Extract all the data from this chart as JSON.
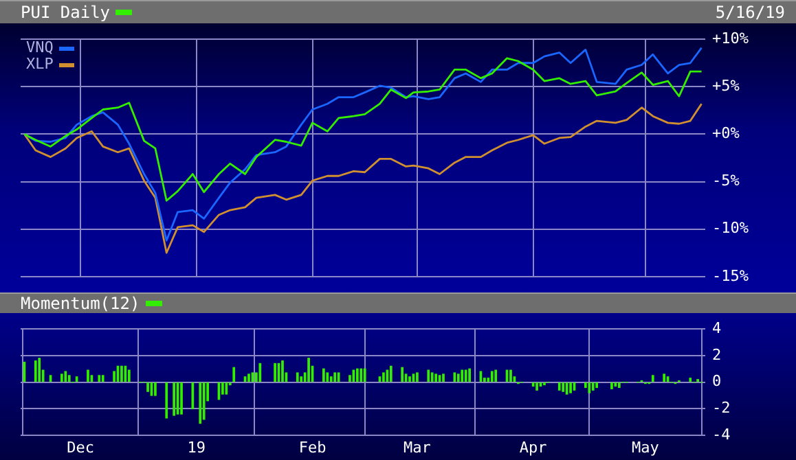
{
  "chart_data": [
    {
      "type": "line",
      "title": "PUI Daily",
      "annotations": [
        "5/16/19"
      ],
      "legend": "top left",
      "grid": true,
      "marker": "none",
      "tick_labels": "y",
      "x": [
        "2018-11-16",
        "2018-11-19",
        "2018-11-23",
        "2018-11-27",
        "2018-11-30",
        "2018-12-04",
        "2018-12-07",
        "2018-12-11",
        "2018-12-14",
        "2018-12-18",
        "2018-12-21",
        "2018-12-24",
        "2018-12-27",
        "2018-12-31",
        "2019-01-03",
        "2019-01-07",
        "2019-01-10",
        "2019-01-14",
        "2019-01-17",
        "2019-01-22",
        "2019-01-25",
        "2019-01-29",
        "2019-02-01",
        "2019-02-05",
        "2019-02-08",
        "2019-02-12",
        "2019-02-15",
        "2019-02-19",
        "2019-02-22",
        "2019-02-26",
        "2019-02-28",
        "2019-03-04",
        "2019-03-07",
        "2019-03-11",
        "2019-03-14",
        "2019-03-18",
        "2019-03-21",
        "2019-03-25",
        "2019-03-28",
        "2019-04-01",
        "2019-04-04",
        "2019-04-08",
        "2019-04-11",
        "2019-04-15",
        "2019-04-18",
        "2019-04-23",
        "2019-04-26",
        "2019-04-30",
        "2019-05-03",
        "2019-05-07",
        "2019-05-10",
        "2019-05-13",
        "2019-05-16"
      ],
      "series": [
        {
          "color": "#33ee00",
          "values": [
            0,
            -0.6,
            -1.3,
            -0.2,
            0.5,
            1.7,
            2.6,
            2.8,
            3.3,
            -0.7,
            -1.5,
            -7.0,
            -6.0,
            -4.2,
            -6.1,
            -4.2,
            -3.1,
            -4.2,
            -2.4,
            -0.6,
            -0.8,
            -1.2,
            1.2,
            0.3,
            1.7,
            1.9,
            2.1,
            3.2,
            4.7,
            3.8,
            4.4,
            4.5,
            4.7,
            6.8,
            6.8,
            5.9,
            6.4,
            8.0,
            7.7,
            6.8,
            5.6,
            5.9,
            5.3,
            5.6,
            4.1,
            4.5,
            5.4,
            6.5,
            5.2,
            5.6,
            4.0,
            6.6,
            6.6
          ]
        },
        {
          "name": "VNQ",
          "color": "#1a66ff",
          "values": [
            0,
            -0.7,
            -0.8,
            -0.4,
            1.0,
            1.9,
            2.3,
            1.0,
            -1.0,
            -4.2,
            -6.2,
            -11.2,
            -8.2,
            -8.0,
            -8.9,
            -6.7,
            -5.1,
            -3.7,
            -2.2,
            -1.9,
            -1.3,
            1.0,
            2.6,
            3.2,
            3.9,
            3.9,
            4.4,
            5.1,
            4.9,
            3.9,
            4.0,
            3.7,
            3.9,
            5.9,
            6.4,
            5.5,
            6.8,
            6.8,
            7.5,
            7.5,
            8.2,
            8.6,
            7.5,
            8.9,
            5.5,
            5.3,
            6.8,
            7.3,
            8.4,
            6.4,
            7.3,
            7.5,
            9.1
          ]
        },
        {
          "name": "XLP",
          "color": "#d09030",
          "values": [
            0,
            -1.7,
            -2.4,
            -1.5,
            -0.4,
            0.3,
            -1.3,
            -1.9,
            -1.5,
            -4.9,
            -6.7,
            -12.5,
            -9.8,
            -9.6,
            -10.3,
            -8.5,
            -8.0,
            -7.7,
            -6.7,
            -6.4,
            -6.9,
            -6.4,
            -4.9,
            -4.4,
            -4.4,
            -3.9,
            -4.0,
            -2.6,
            -2.6,
            -3.4,
            -3.3,
            -3.6,
            -4.2,
            -3.0,
            -2.4,
            -2.4,
            -1.7,
            -0.9,
            -0.6,
            -0.1,
            -1.0,
            -0.4,
            -0.3,
            0.8,
            1.4,
            1.2,
            1.5,
            2.8,
            1.9,
            1.2,
            1.1,
            1.4,
            3.2
          ]
        }
      ],
      "xlim": [
        "2018-11-15",
        "2019-05-17"
      ],
      "xticks": [
        {
          "value": "2018-12-01",
          "label": null
        },
        {
          "value": "2019-01-01",
          "label": null
        },
        {
          "value": "2019-02-01",
          "label": null
        },
        {
          "value": "2019-03-01",
          "label": null
        },
        {
          "value": "2019-04-01",
          "label": null
        },
        {
          "value": "2019-05-01",
          "label": null
        }
      ],
      "ylim": [
        -15,
        10
      ],
      "yticks": [
        {
          "value": 10,
          "label": "+10%"
        },
        {
          "value": 5,
          "label": "+5%"
        },
        {
          "value": 0,
          "label": "+0%"
        },
        {
          "value": -5,
          "label": "-5%"
        },
        {
          "value": -10,
          "label": "-10%"
        },
        {
          "value": -15,
          "label": "-15%"
        }
      ]
    },
    {
      "type": "bar",
      "title": "Momentum(12)",
      "grid": true,
      "color": "#33ee00",
      "x": [
        "2018-11-16",
        "2018-11-19",
        "2018-11-20",
        "2018-11-21",
        "2018-11-23",
        "2018-11-26",
        "2018-11-27",
        "2018-11-28",
        "2018-11-29",
        "2018-11-30",
        "2018-12-03",
        "2018-12-04",
        "2018-12-06",
        "2018-12-07",
        "2018-12-10",
        "2018-12-11",
        "2018-12-12",
        "2018-12-13",
        "2018-12-14",
        "2018-12-17",
        "2018-12-18",
        "2018-12-19",
        "2018-12-20",
        "2018-12-21",
        "2018-12-24",
        "2018-12-26",
        "2018-12-27",
        "2018-12-28",
        "2018-12-31",
        "2019-01-02",
        "2019-01-03",
        "2019-01-04",
        "2019-01-07",
        "2019-01-08",
        "2019-01-09",
        "2019-01-10",
        "2019-01-11",
        "2019-01-14",
        "2019-01-15",
        "2019-01-16",
        "2019-01-17",
        "2019-01-18",
        "2019-01-22",
        "2019-01-23",
        "2019-01-24",
        "2019-01-25",
        "2019-01-28",
        "2019-01-29",
        "2019-01-30",
        "2019-01-31",
        "2019-02-01",
        "2019-02-04",
        "2019-02-05",
        "2019-02-06",
        "2019-02-07",
        "2019-02-08",
        "2019-02-11",
        "2019-02-12",
        "2019-02-13",
        "2019-02-14",
        "2019-02-15",
        "2019-02-19",
        "2019-02-20",
        "2019-02-21",
        "2019-02-22",
        "2019-02-25",
        "2019-02-26",
        "2019-02-27",
        "2019-02-28",
        "2019-03-01",
        "2019-03-04",
        "2019-03-05",
        "2019-03-06",
        "2019-03-07",
        "2019-03-08",
        "2019-03-11",
        "2019-03-12",
        "2019-03-13",
        "2019-03-14",
        "2019-03-15",
        "2019-03-18",
        "2019-03-19",
        "2019-03-20",
        "2019-03-21",
        "2019-03-22",
        "2019-03-25",
        "2019-03-26",
        "2019-03-27",
        "2019-03-28",
        "2019-03-29",
        "2019-04-01",
        "2019-04-02",
        "2019-04-03",
        "2019-04-04",
        "2019-04-05",
        "2019-04-08",
        "2019-04-09",
        "2019-04-10",
        "2019-04-11",
        "2019-04-12",
        "2019-04-15",
        "2019-04-16",
        "2019-04-17",
        "2019-04-18",
        "2019-04-22",
        "2019-04-23",
        "2019-04-24",
        "2019-04-25",
        "2019-04-26",
        "2019-04-29",
        "2019-04-30",
        "2019-05-01",
        "2019-05-02",
        "2019-05-03",
        "2019-05-06",
        "2019-05-07",
        "2019-05-08",
        "2019-05-09",
        "2019-05-10",
        "2019-05-13",
        "2019-05-14",
        "2019-05-15",
        "2019-05-16"
      ],
      "values": [
        1.5,
        1.6,
        1.8,
        0.9,
        0.5,
        0.6,
        0.8,
        0.5,
        0,
        0.4,
        0.9,
        0.5,
        0.5,
        0.5,
        0.8,
        1.2,
        1.2,
        1.2,
        0.9,
        0,
        0,
        -0.7,
        -1.0,
        -1.0,
        -2.7,
        -2.5,
        -2.4,
        -2.4,
        -2.0,
        -3.1,
        -2.8,
        -1.4,
        -1.3,
        -0.9,
        -0.9,
        -0.2,
        1.1,
        0.4,
        0.6,
        0.7,
        0.7,
        1.4,
        1.4,
        1.4,
        1.6,
        0.7,
        0.7,
        0.4,
        0.7,
        1.8,
        1.2,
        1.0,
        0.7,
        0.4,
        0.7,
        0.7,
        0.5,
        0.9,
        1.0,
        1.0,
        1.0,
        0.4,
        0.7,
        0.9,
        1.2,
        1.1,
        0.6,
        0.4,
        0.6,
        0.7,
        0.9,
        0.7,
        0.6,
        0.5,
        0.6,
        0.7,
        0.6,
        0.9,
        0.9,
        1.0,
        0.8,
        0.3,
        0.3,
        0.8,
        0.9,
        0.9,
        0.9,
        0.4,
        -0.1,
        0,
        -0.3,
        -0.6,
        -0.3,
        -0.2,
        0,
        -0.6,
        -0.7,
        -0.9,
        -0.8,
        -0.6,
        -0.4,
        -0.8,
        -0.6,
        -0.4,
        -0.5,
        -0.3,
        -0.4,
        0,
        0,
        0,
        0.1,
        -0.1,
        -0.1,
        0.5,
        0.6,
        0.4,
        0,
        -0.1,
        0.1,
        0.3,
        0,
        0.2,
        0
      ],
      "xlim": [
        "2018-11-15",
        "2019-05-17"
      ],
      "xticks": [
        {
          "value": "2018-12-01",
          "label": "Dec"
        },
        {
          "value": "2019-01-01",
          "label": "19"
        },
        {
          "value": "2019-02-01",
          "label": "Feb"
        },
        {
          "value": "2019-03-01",
          "label": "Mar"
        },
        {
          "value": "2019-04-01",
          "label": "Apr"
        },
        {
          "value": "2019-05-01",
          "label": "May"
        }
      ],
      "ylim": [
        -4,
        4
      ],
      "yticks": [
        4,
        2,
        0,
        -2,
        -4
      ]
    }
  ]
}
